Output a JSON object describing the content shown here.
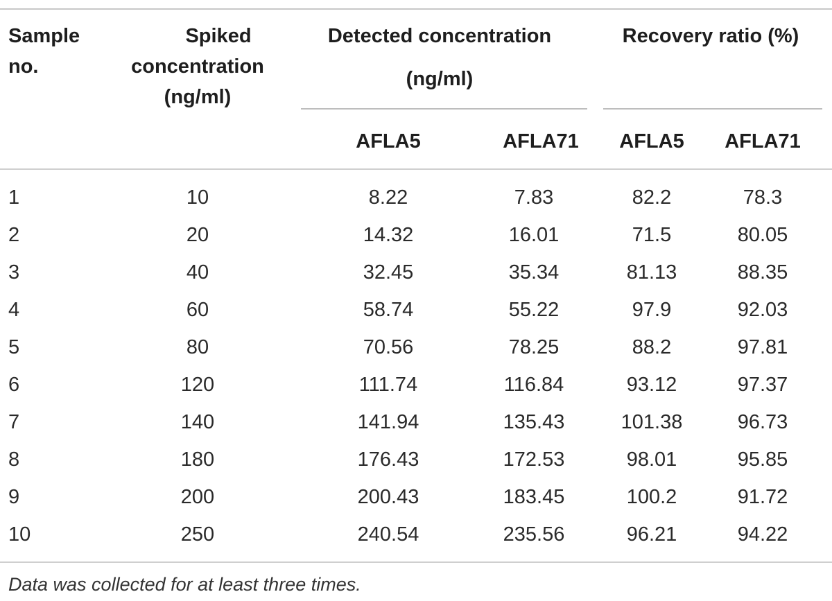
{
  "table": {
    "header": {
      "sample": "Sample no.",
      "sample_lines": [
        "Sample",
        "no."
      ],
      "spiked_lines": [
        "Spiked",
        "concentration",
        "(ng/ml)"
      ],
      "detected_lines": [
        "Detected concentration",
        "(ng/ml)"
      ],
      "recovery": "Recovery ratio (%)",
      "sub": [
        "AFLA5",
        "AFLA71",
        "AFLA5",
        "AFLA71"
      ]
    },
    "rows": [
      [
        "1",
        "10",
        "8.22",
        "7.83",
        "82.2",
        "78.3"
      ],
      [
        "2",
        "20",
        "14.32",
        "16.01",
        "71.5",
        "80.05"
      ],
      [
        "3",
        "40",
        "32.45",
        "35.34",
        "81.13",
        "88.35"
      ],
      [
        "4",
        "60",
        "58.74",
        "55.22",
        "97.9",
        "92.03"
      ],
      [
        "5",
        "80",
        "70.56",
        "78.25",
        "88.2",
        "97.81"
      ],
      [
        "6",
        "120",
        "111.74",
        "116.84",
        "93.12",
        "97.37"
      ],
      [
        "7",
        "140",
        "141.94",
        "135.43",
        "101.38",
        "96.73"
      ],
      [
        "8",
        "180",
        "176.43",
        "172.53",
        "98.01",
        "95.85"
      ],
      [
        "9",
        "200",
        "200.43",
        "183.45",
        "100.2",
        "91.72"
      ],
      [
        "10",
        "250",
        "240.54",
        "235.56",
        "96.21",
        "94.22"
      ]
    ],
    "note": "Data was collected for at least three times."
  }
}
